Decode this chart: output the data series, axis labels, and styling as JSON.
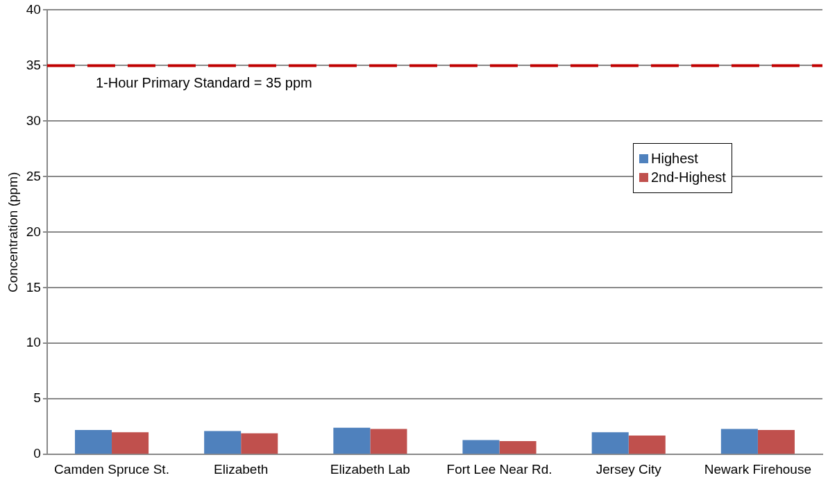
{
  "chart_data": {
    "type": "bar",
    "ylabel": "Concentration (ppm)",
    "categories": [
      "Camden Spruce St.",
      "Elizabeth",
      "Elizabeth Lab",
      "Fort Lee Near Rd.",
      "Jersey City",
      "Newark Firehouse"
    ],
    "series": [
      {
        "name": "Highest",
        "color": "#4f81bd",
        "values": [
          2.2,
          2.1,
          2.4,
          1.3,
          2.0,
          2.3
        ]
      },
      {
        "name": "2nd-Highest",
        "color": "#c0504d",
        "values": [
          2.0,
          1.9,
          2.3,
          1.2,
          1.7,
          2.2
        ]
      }
    ],
    "ylim": [
      0,
      40
    ],
    "yticks": [
      0,
      5,
      10,
      15,
      20,
      25,
      30,
      35,
      40
    ],
    "grid": "y",
    "legend": "right",
    "ref_lines": [
      {
        "axis": "y",
        "value": 35,
        "label": "1-Hour Primary Standard = 35 ppm",
        "color": "#c00000",
        "line_style": "dashed"
      }
    ]
  }
}
